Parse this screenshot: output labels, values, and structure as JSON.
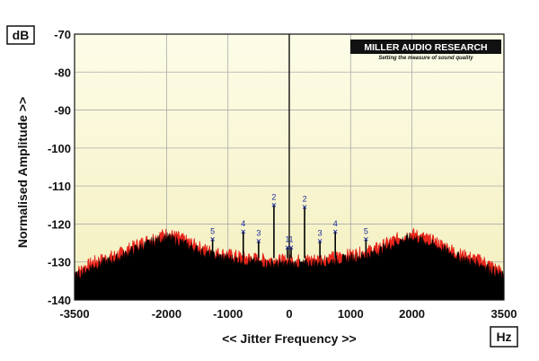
{
  "chart_data": {
    "type": "area",
    "title": "",
    "xlabel": "<< Jitter Frequency >>",
    "ylabel": "Normalised Amplitude >>",
    "y_unit": "dB",
    "x_unit": "Hz",
    "xlim": [
      -3500,
      3500
    ],
    "ylim": [
      -140,
      -70
    ],
    "x_ticks": [
      -3500,
      -2000,
      -1000,
      0,
      1000,
      2000,
      3500
    ],
    "y_ticks": [
      -70,
      -80,
      -90,
      -100,
      -110,
      -120,
      -130,
      -140
    ],
    "grid": true,
    "series": [
      {
        "color": "#e8261c",
        "x": [
          -3500,
          -3200,
          -2800,
          -2500,
          -2200,
          -2000,
          -1800,
          -1600,
          -1400,
          -1200,
          -1000,
          -800,
          -600,
          -400,
          -200,
          0,
          200,
          400,
          600,
          800,
          1000,
          1200,
          1400,
          1600,
          1800,
          2000,
          2200,
          2500,
          2800,
          3200,
          3500
        ],
        "y": [
          -133,
          -130,
          -128,
          -125.5,
          -123.5,
          -122.5,
          -123.5,
          -125,
          -126.5,
          -127.5,
          -128,
          -128.5,
          -129,
          -129.3,
          -129.5,
          -129.5,
          -129.5,
          -129.3,
          -129,
          -128.5,
          -128,
          -127.5,
          -126.5,
          -125,
          -123.5,
          -122.5,
          -123.5,
          -125.5,
          -128,
          -130,
          -133
        ]
      },
      {
        "color": "#000000",
        "x": [
          -3500,
          -3200,
          -2800,
          -2500,
          -2200,
          -2000,
          -1800,
          -1600,
          -1400,
          -1200,
          -1000,
          -800,
          -600,
          -400,
          -200,
          0,
          200,
          400,
          600,
          800,
          1000,
          1200,
          1400,
          1600,
          1800,
          2000,
          2200,
          2500,
          2800,
          3200,
          3500
        ],
        "y": [
          -134,
          -131,
          -129,
          -126.5,
          -124.5,
          -123.5,
          -124.5,
          -126,
          -127.5,
          -128.5,
          -129,
          -129.5,
          -130,
          -130.3,
          -130.5,
          -130.5,
          -130.5,
          -130.3,
          -130,
          -129.5,
          -129,
          -128.5,
          -127.5,
          -126,
          -124.5,
          -123.5,
          -124.5,
          -126.5,
          -129,
          -131,
          -134
        ]
      }
    ],
    "markers": [
      {
        "label": "1",
        "x": -30,
        "y": -126.2
      },
      {
        "label": "1",
        "x": 30,
        "y": -126.2
      },
      {
        "label": "2",
        "x": -250,
        "y": -115
      },
      {
        "label": "2",
        "x": 250,
        "y": -115.5
      },
      {
        "label": "3",
        "x": -500,
        "y": -124.5
      },
      {
        "label": "3",
        "x": 500,
        "y": -124.5
      },
      {
        "label": "4",
        "x": -750,
        "y": -122
      },
      {
        "label": "4",
        "x": 750,
        "y": -122
      },
      {
        "label": "5",
        "x": -1250,
        "y": -124
      },
      {
        "label": "5",
        "x": 1250,
        "y": -124
      }
    ],
    "peak_line": {
      "x": 0,
      "y": -70
    },
    "brand": {
      "name": "MILLER AUDIO RESEARCH",
      "tagline": "Setting the measure of sound quality"
    }
  },
  "colors": {
    "plot_top": "#fdfde8",
    "plot_bottom": "#f3efbe",
    "grid": "#aaaaaa"
  }
}
